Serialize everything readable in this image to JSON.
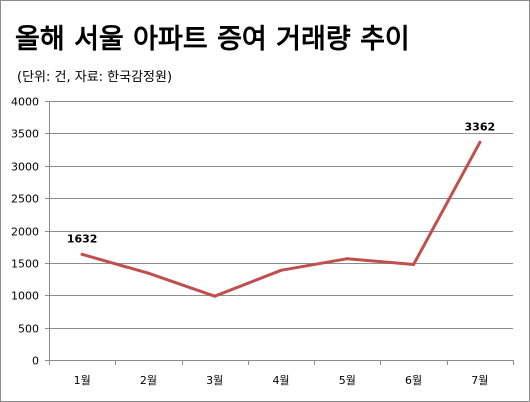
{
  "title": "올해 서울 아파트 증여 거래량 추이",
  "subtitle": "(단위: 건, 자료: 한국감정원)",
  "colors": {
    "line": "#c0504d",
    "grid": "#8c8c8c",
    "axis": "#8c8c8c"
  },
  "chart_data": {
    "type": "line",
    "title": "올해 서울 아파트 증여 거래량 추이",
    "subtitle": "(단위: 건, 자료: 한국감정원)",
    "categories": [
      "1월",
      "2월",
      "3월",
      "4월",
      "5월",
      "6월",
      "7월"
    ],
    "series": [
      {
        "values": [
          1632,
          1340,
          985,
          1385,
          1565,
          1475,
          3362
        ]
      }
    ],
    "data_labels": [
      {
        "index": 0,
        "text": "1632"
      },
      {
        "index": 6,
        "text": "3362"
      }
    ],
    "yticks": [
      "0",
      "500",
      "1000",
      "1500",
      "2000",
      "2500",
      "3000",
      "3500",
      "4000"
    ],
    "ylim": [
      0,
      4000
    ],
    "grid": true,
    "legend": "none"
  }
}
